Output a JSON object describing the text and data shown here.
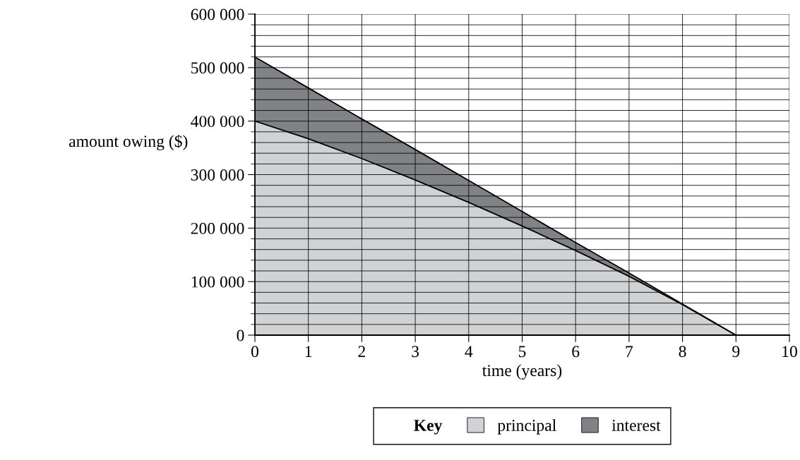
{
  "chart_data": {
    "type": "area",
    "stacked": true,
    "xlabel": "time (years)",
    "ylabel": "amount owing ($)",
    "legend_title": "Key",
    "x": [
      0,
      1,
      2,
      3,
      4,
      5,
      6,
      7,
      8,
      9
    ],
    "series": [
      {
        "name": "principal",
        "color": "#d1d2d4",
        "values": [
          400000,
          367000,
          330000,
          290000,
          248000,
          204000,
          158000,
          110000,
          57000,
          0
        ]
      },
      {
        "name": "interest",
        "color": "#808285",
        "values": [
          120000,
          95000,
          74000,
          57000,
          41000,
          27000,
          15000,
          6000,
          1000,
          0
        ]
      }
    ],
    "xlim": [
      0,
      10
    ],
    "xticks": [
      0,
      1,
      2,
      3,
      4,
      5,
      6,
      7,
      8,
      9,
      10
    ],
    "ylim": [
      0,
      600000
    ],
    "yticks": [
      {
        "value": 0,
        "label": "0"
      },
      {
        "value": 100000,
        "label": "100 000"
      },
      {
        "value": 200000,
        "label": "200 000"
      },
      {
        "value": 300000,
        "label": "300 000"
      },
      {
        "value": 400000,
        "label": "400 000"
      },
      {
        "value": 500000,
        "label": "500 000"
      },
      {
        "value": 600000,
        "label": "600 000"
      }
    ],
    "grid": true,
    "legend": "bottom"
  }
}
